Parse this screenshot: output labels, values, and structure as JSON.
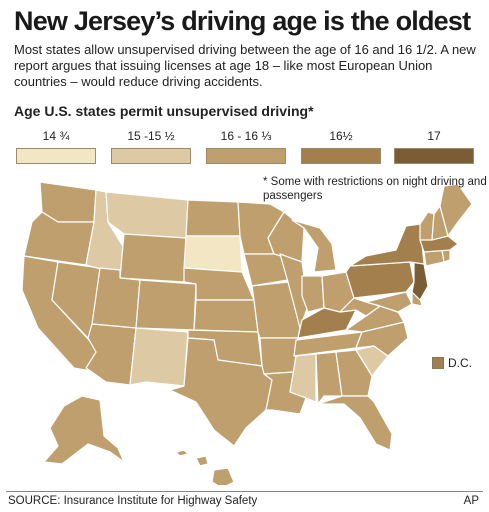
{
  "headline": "New Jersey’s driving age is the oldest",
  "dek": "Most states allow unsupervised driving between the age of 16 and 16 1/2. A new report argues that issuing licenses at age 18 – like most European Union countries – would reduce driving accidents.",
  "subhead": "Age U.S. states permit unsupervised driving*",
  "legend": [
    {
      "label": "14 ¾",
      "color": "#f2e6c4"
    },
    {
      "label": "15 -15 ½",
      "color": "#ddc9a3"
    },
    {
      "label": "16 - 16 ⅓",
      "color": "#bf9f6e"
    },
    {
      "label": "16½",
      "color": "#a27f4d"
    },
    {
      "label": "17",
      "color": "#7a5d34"
    }
  ],
  "note": "* Some with restrictions on night driving and passengers",
  "dc_label": "D.C.",
  "colors": {
    "border": "#ffffff",
    "map_default": "#bf9f6e"
  },
  "states": {
    "WA": "16 - 16 ⅓",
    "OR": "16 - 16 ⅓",
    "CA": "16 - 16 ⅓",
    "NV": "16 - 16 ⅓",
    "ID": "15 -15 ½",
    "MT": "15 -15 ½",
    "WY": "16 - 16 ⅓",
    "UT": "16 - 16 ⅓",
    "AZ": "16 - 16 ⅓",
    "CO": "16 - 16 ⅓",
    "NM": "15 -15 ½",
    "ND": "16 - 16 ⅓",
    "SD": "14 ¾",
    "NE": "16 - 16 ⅓",
    "KS": "16 - 16 ⅓",
    "OK": "16 - 16 ⅓",
    "TX": "16 - 16 ⅓",
    "MN": "16 - 16 ⅓",
    "IA": "16 - 16 ⅓",
    "MO": "16 - 16 ⅓",
    "AR": "16 - 16 ⅓",
    "LA": "16 - 16 ⅓",
    "WI": "16 - 16 ⅓",
    "IL": "16 - 16 ⅓",
    "MI": "16 - 16 ⅓",
    "IN": "16 - 16 ⅓",
    "OH": "16 - 16 ⅓",
    "KY": "16½",
    "TN": "16 - 16 ⅓",
    "MS": "15 -15 ½",
    "AL": "16 - 16 ⅓",
    "GA": "16 - 16 ⅓",
    "FL": "16 - 16 ⅓",
    "SC": "15 -15 ½",
    "NC": "16 - 16 ⅓",
    "VA": "16 - 16 ⅓",
    "WV": "16 - 16 ⅓",
    "PA": "16½",
    "NY": "16½",
    "NJ": "17",
    "DE": "16 - 16 ⅓",
    "MD": "16 - 16 ⅓",
    "CT": "16 - 16 ⅓",
    "RI": "16 - 16 ⅓",
    "MA": "16½",
    "VT": "16 - 16 ⅓",
    "NH": "16 - 16 ⅓",
    "ME": "16 - 16 ⅓",
    "AK": "16 - 16 ⅓",
    "HI": "16 - 16 ⅓",
    "DC": "16½"
  },
  "source": "SOURCE: Insurance Institute for Highway Safety",
  "credit": "AP"
}
